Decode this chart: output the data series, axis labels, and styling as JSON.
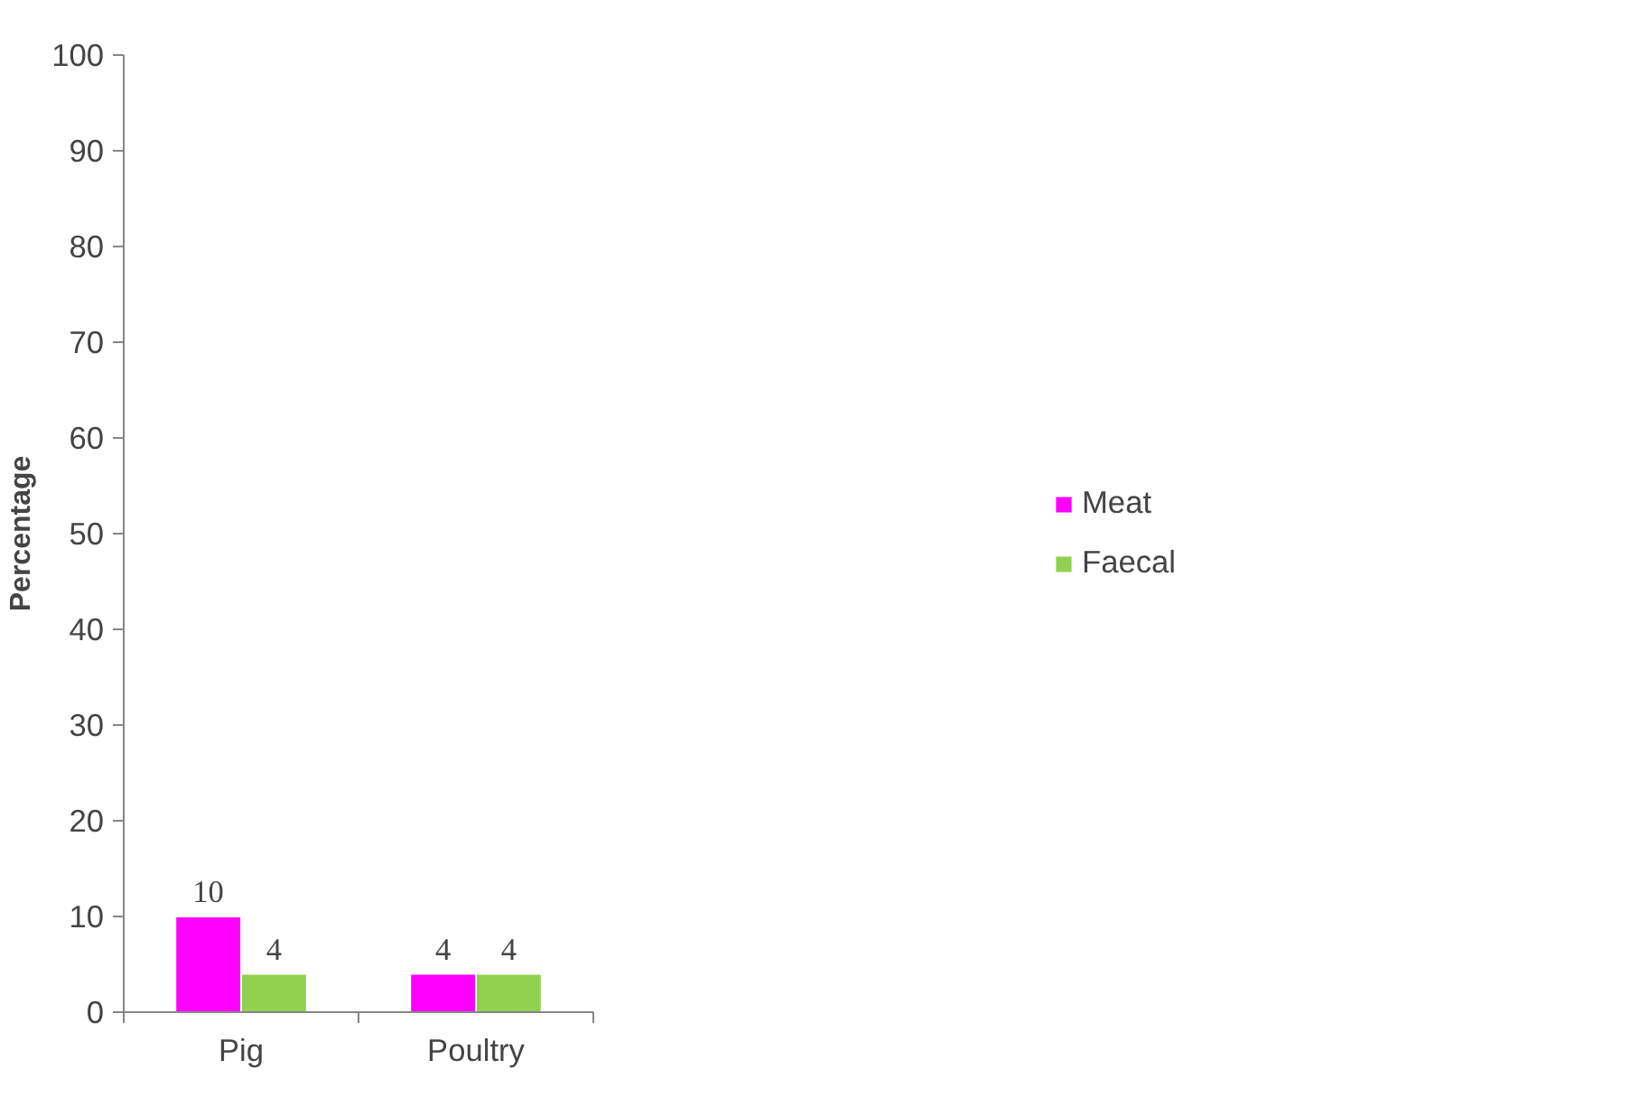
{
  "chart_data": {
    "type": "bar",
    "ylabel": "Percentage",
    "categories": [
      "Pig",
      "Poultry"
    ],
    "series": [
      {
        "name": "Meat",
        "color": "#ff00ff",
        "values": [
          10,
          4
        ]
      },
      {
        "name": "Faecal",
        "color": "#92d050",
        "values": [
          4,
          4
        ]
      }
    ],
    "ylim": [
      0,
      100
    ],
    "yticks": [
      0,
      10,
      20,
      30,
      40,
      50,
      60,
      70,
      80,
      90,
      100
    ],
    "grid": false,
    "legend": "right",
    "data_labels": true
  }
}
